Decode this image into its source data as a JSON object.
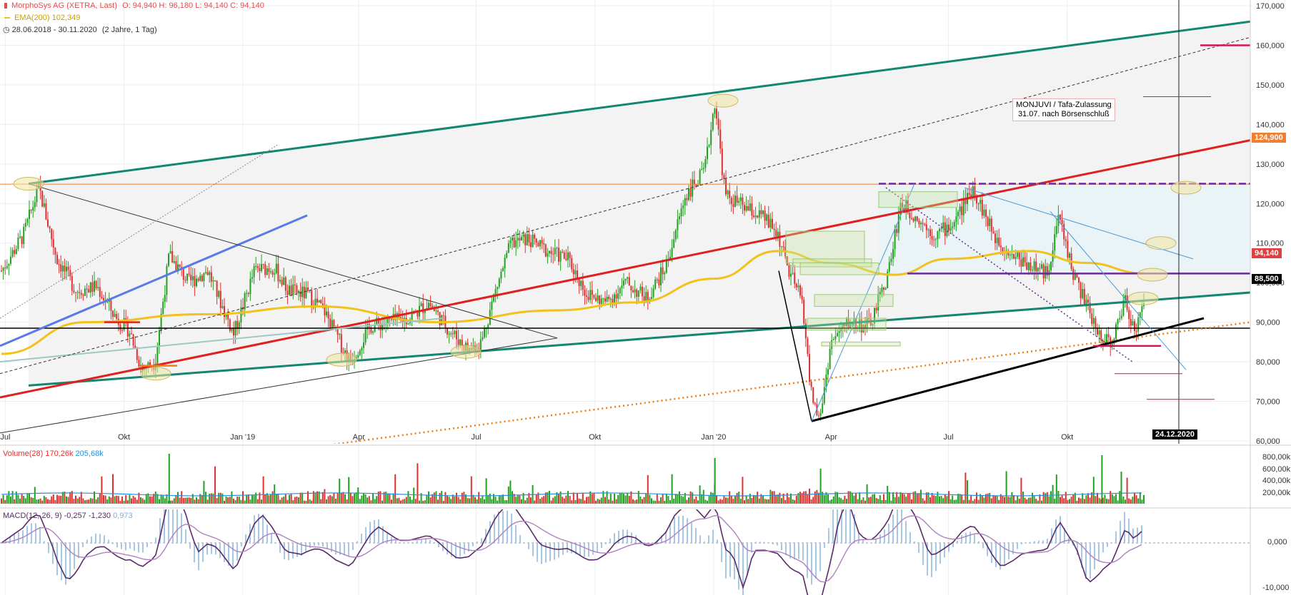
{
  "header": {
    "title": "MorphoSys AG (XETRA, Last)",
    "ohlc": "O: 94,940  H: 96,180  L: 94,140  C: 94,140",
    "ema_label": "EMA(200)",
    "ema_value": "102,349",
    "range": "28.06.2018 - 30.11.2020",
    "range_note": "(2 Jahre, 1 Tag)"
  },
  "colors": {
    "up": "#22a022",
    "down": "#e03030",
    "ema": "#f2c21a",
    "channel": "#12866f",
    "red_trend": "#e01f1f",
    "horizontal": "#000000",
    "orange": "#f07c12",
    "magenta": "#d4145a"
  },
  "annotation": {
    "line1": "MONJUVI / Tafa-Zulassung",
    "line2": "31.07. nach Börsenschluß"
  },
  "price_tags": {
    "resistance": "124,900",
    "last": "94,140",
    "support": "88,500",
    "cursor_date": "24.12.2020"
  },
  "volume_panel": {
    "title": "Volume(28)",
    "v1": "170,26k",
    "v2": "205,68k",
    "ticks": [
      "800,00k",
      "600,00k",
      "400,00k",
      "200,00k"
    ]
  },
  "macd_panel": {
    "title": "MACD(12, 26, 9)",
    "v1": "-0,257",
    "v2": "-1,230",
    "v3": "0,973",
    "ticks": [
      "0,000",
      "-10,000"
    ]
  },
  "chart_data": {
    "type": "candlestick",
    "title": "MorphoSys AG (XETRA, Last)",
    "x_ticks": [
      "Jul",
      "Okt",
      "Jan '19",
      "Apr",
      "Jul",
      "Okt",
      "Jan '20",
      "Apr",
      "Jul",
      "Okt"
    ],
    "y_ticks": [
      60000,
      70000,
      80000,
      90000,
      100000,
      110000,
      120000,
      130000,
      140000,
      150000,
      160000,
      170000
    ],
    "y_tick_labels": [
      "60,000",
      "70,000",
      "80,000",
      "90,000",
      "100,000",
      "110,000",
      "120,000",
      "130,000",
      "140,000",
      "150,000",
      "160,000",
      "170,000"
    ],
    "ylim": [
      60000,
      172000
    ],
    "price_path": [
      {
        "date": "2018-06-28",
        "close": 103
      },
      {
        "date": "2018-07-15",
        "close": 112
      },
      {
        "date": "2018-07-27",
        "close": 124
      },
      {
        "date": "2018-08-10",
        "close": 106
      },
      {
        "date": "2018-08-25",
        "close": 98
      },
      {
        "date": "2018-09-10",
        "close": 99
      },
      {
        "date": "2018-09-25",
        "close": 91
      },
      {
        "date": "2018-10-05",
        "close": 88
      },
      {
        "date": "2018-10-15",
        "close": 78
      },
      {
        "date": "2018-10-25",
        "close": 80
      },
      {
        "date": "2018-11-05",
        "close": 107
      },
      {
        "date": "2018-11-20",
        "close": 100
      },
      {
        "date": "2018-12-05",
        "close": 103
      },
      {
        "date": "2018-12-25",
        "close": 87
      },
      {
        "date": "2019-01-10",
        "close": 103
      },
      {
        "date": "2019-01-25",
        "close": 104
      },
      {
        "date": "2019-02-05",
        "close": 98
      },
      {
        "date": "2019-02-20",
        "close": 97
      },
      {
        "date": "2019-03-05",
        "close": 93
      },
      {
        "date": "2019-03-25",
        "close": 80
      },
      {
        "date": "2019-04-10",
        "close": 89
      },
      {
        "date": "2019-04-25",
        "close": 90
      },
      {
        "date": "2019-05-10",
        "close": 91
      },
      {
        "date": "2019-05-25",
        "close": 95
      },
      {
        "date": "2019-06-10",
        "close": 88
      },
      {
        "date": "2019-06-25",
        "close": 83
      },
      {
        "date": "2019-07-05",
        "close": 85
      },
      {
        "date": "2019-07-15",
        "close": 97
      },
      {
        "date": "2019-07-28",
        "close": 110
      },
      {
        "date": "2019-08-10",
        "close": 111
      },
      {
        "date": "2019-08-25",
        "close": 108
      },
      {
        "date": "2019-09-10",
        "close": 106
      },
      {
        "date": "2019-09-25",
        "close": 97
      },
      {
        "date": "2019-10-10",
        "close": 95
      },
      {
        "date": "2019-10-25",
        "close": 100
      },
      {
        "date": "2019-11-10",
        "close": 96
      },
      {
        "date": "2019-11-25",
        "close": 104
      },
      {
        "date": "2019-12-10",
        "close": 122
      },
      {
        "date": "2019-12-25",
        "close": 128
      },
      {
        "date": "2020-01-02",
        "close": 146
      },
      {
        "date": "2020-01-10",
        "close": 122
      },
      {
        "date": "2020-01-25",
        "close": 119
      },
      {
        "date": "2020-02-10",
        "close": 116
      },
      {
        "date": "2020-02-20",
        "close": 112
      },
      {
        "date": "2020-02-28",
        "close": 103
      },
      {
        "date": "2020-03-10",
        "close": 95
      },
      {
        "date": "2020-03-16",
        "close": 73
      },
      {
        "date": "2020-03-23",
        "close": 65
      },
      {
        "date": "2020-04-01",
        "close": 85
      },
      {
        "date": "2020-04-15",
        "close": 90
      },
      {
        "date": "2020-05-01",
        "close": 89
      },
      {
        "date": "2020-05-15",
        "close": 102
      },
      {
        "date": "2020-05-25",
        "close": 120
      },
      {
        "date": "2020-06-05",
        "close": 117
      },
      {
        "date": "2020-06-20",
        "close": 112
      },
      {
        "date": "2020-07-05",
        "close": 115
      },
      {
        "date": "2020-07-20",
        "close": 124
      },
      {
        "date": "2020-08-05",
        "close": 112
      },
      {
        "date": "2020-08-20",
        "close": 107
      },
      {
        "date": "2020-09-05",
        "close": 104
      },
      {
        "date": "2020-09-15",
        "close": 102
      },
      {
        "date": "2020-09-25",
        "close": 117
      },
      {
        "date": "2020-10-05",
        "close": 103
      },
      {
        "date": "2020-10-15",
        "close": 95
      },
      {
        "date": "2020-10-25",
        "close": 87
      },
      {
        "date": "2020-11-05",
        "close": 85
      },
      {
        "date": "2020-11-15",
        "close": 96
      },
      {
        "date": "2020-11-22",
        "close": 88
      },
      {
        "date": "2020-11-30",
        "close": 94.14
      }
    ],
    "ema200_path": [
      {
        "date": "2018-06-28",
        "close": 82
      },
      {
        "date": "2018-09-01",
        "close": 90
      },
      {
        "date": "2018-12-01",
        "close": 92
      },
      {
        "date": "2019-03-01",
        "close": 94
      },
      {
        "date": "2019-06-01",
        "close": 90
      },
      {
        "date": "2019-09-01",
        "close": 93
      },
      {
        "date": "2019-11-01",
        "close": 95
      },
      {
        "date": "2020-01-01",
        "close": 101
      },
      {
        "date": "2020-02-20",
        "close": 108
      },
      {
        "date": "2020-04-01",
        "close": 105
      },
      {
        "date": "2020-05-20",
        "close": 102
      },
      {
        "date": "2020-07-01",
        "close": 106
      },
      {
        "date": "2020-09-01",
        "close": 108
      },
      {
        "date": "2020-10-15",
        "close": 105
      },
      {
        "date": "2020-11-30",
        "close": 102.349
      }
    ],
    "horizontal_levels": [
      124.9,
      102.3,
      88.5
    ],
    "last_close": 94.14,
    "grid": true
  }
}
